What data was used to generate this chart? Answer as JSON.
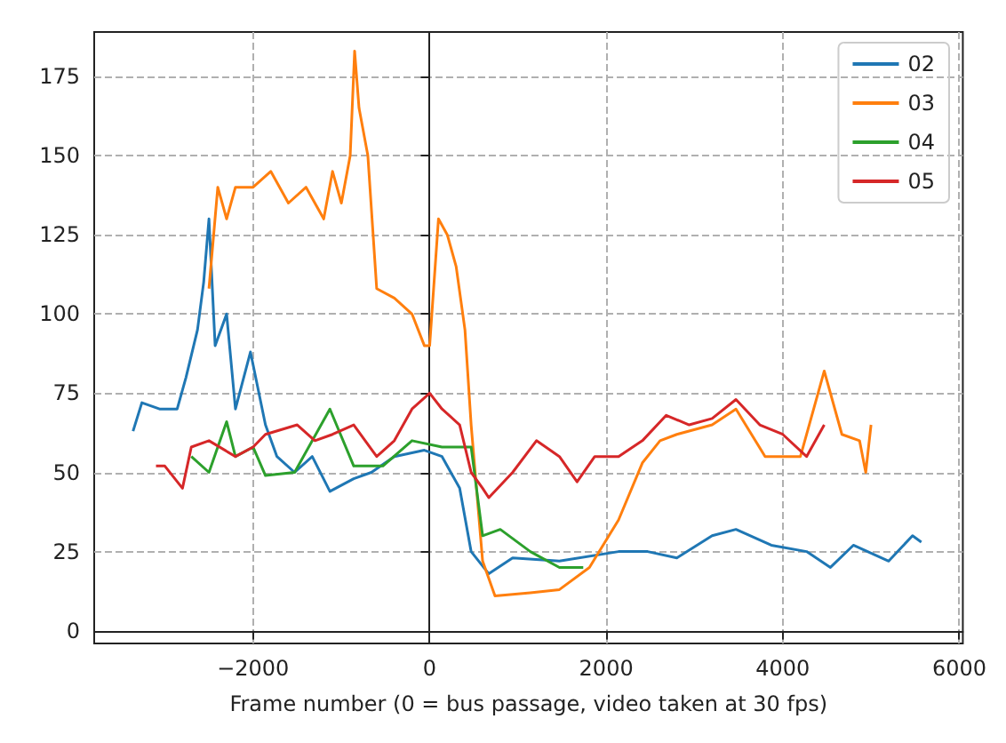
{
  "chart_data": {
    "type": "line",
    "xlabel": "Frame number (0 = bus passage, video taken at 30 fps)",
    "xlim": [
      -3800,
      6040
    ],
    "ylim": [
      -4,
      189
    ],
    "xticks": [
      {
        "value": -2000,
        "label": "−2000"
      },
      0,
      2000,
      4000,
      6000
    ],
    "yticks": [
      0,
      25,
      50,
      75,
      100,
      125,
      150,
      175
    ],
    "grid": true,
    "legend": "top right",
    "series": [
      {
        "name": "02",
        "color": "#1f77b4",
        "x": [
          -3360,
          -3260,
          -3060,
          -2860,
          -2760,
          -2630,
          -2560,
          -2500,
          -2430,
          -2300,
          -2200,
          -2030,
          -1860,
          -1730,
          -1530,
          -1330,
          -1130,
          -860,
          -660,
          -400,
          -60,
          140,
          340,
          470,
          670,
          940,
          1470,
          2140,
          2470,
          2800,
          3200,
          3470,
          3870,
          4270,
          4540,
          4800,
          5200,
          5470,
          5570
        ],
        "values": [
          63,
          72,
          70,
          70,
          80,
          95,
          110,
          130,
          90,
          100,
          70,
          88,
          65,
          55,
          50,
          55,
          44,
          48,
          50,
          55,
          57,
          55,
          45,
          25,
          18,
          23,
          22,
          25,
          25,
          23,
          30,
          32,
          27,
          25,
          20,
          27,
          22,
          30,
          28
        ]
      },
      {
        "name": "03",
        "color": "#ff7f0e",
        "x": [
          -2500,
          -2400,
          -2300,
          -2200,
          -2000,
          -1800,
          -1600,
          -1400,
          -1200,
          -1100,
          -1000,
          -900,
          -850,
          -800,
          -700,
          -600,
          -400,
          -200,
          -60,
          0,
          100,
          200,
          300,
          400,
          470,
          600,
          740,
          1140,
          1470,
          1810,
          2140,
          2410,
          2610,
          2800,
          3200,
          3470,
          3800,
          4000,
          4200,
          4400,
          4470,
          4670,
          4870,
          4940,
          5000
        ],
        "values": [
          108,
          140,
          130,
          140,
          140,
          145,
          135,
          140,
          130,
          145,
          135,
          150,
          183,
          165,
          150,
          108,
          105,
          100,
          90,
          90,
          130,
          125,
          115,
          95,
          65,
          22,
          11,
          12,
          13,
          20,
          35,
          53,
          60,
          62,
          65,
          70,
          55,
          55,
          55,
          75,
          82,
          62,
          60,
          50,
          65
        ]
      },
      {
        "name": "04",
        "color": "#2ca02c",
        "x": [
          -2700,
          -2500,
          -2300,
          -2200,
          -2000,
          -1860,
          -1530,
          -1130,
          -860,
          -530,
          -200,
          140,
          470,
          600,
          800,
          1140,
          1470,
          1740
        ],
        "values": [
          55,
          50,
          66,
          55,
          58,
          49,
          50,
          70,
          52,
          52,
          60,
          58,
          58,
          30,
          32,
          25,
          20,
          20
        ]
      },
      {
        "name": "05",
        "color": "#d62728",
        "x": [
          -3100,
          -3000,
          -2800,
          -2700,
          -2500,
          -2200,
          -2000,
          -1860,
          -1500,
          -1300,
          -1100,
          -860,
          -600,
          -400,
          -200,
          0,
          140,
          340,
          470,
          600,
          670,
          940,
          1210,
          1470,
          1670,
          1870,
          2140,
          2410,
          2680,
          2940,
          3200,
          3470,
          3740,
          4000,
          4270,
          4470
        ],
        "values": [
          52,
          52,
          45,
          58,
          60,
          55,
          58,
          62,
          65,
          60,
          62,
          65,
          55,
          60,
          70,
          75,
          70,
          65,
          50,
          45,
          42,
          50,
          60,
          55,
          47,
          55,
          55,
          60,
          68,
          65,
          67,
          73,
          65,
          62,
          55,
          65
        ]
      }
    ]
  }
}
